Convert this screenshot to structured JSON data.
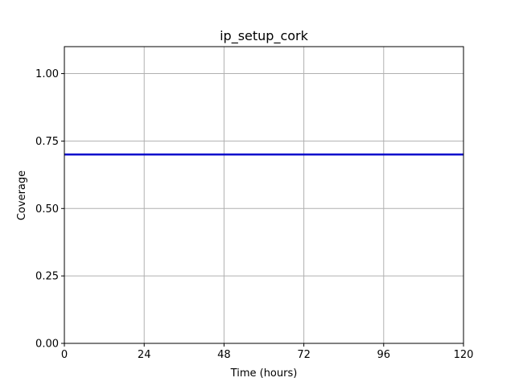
{
  "chart_data": {
    "type": "line",
    "title": "ip_setup_cork",
    "xlabel": "Time (hours)",
    "ylabel": "Coverage",
    "xlim": [
      0,
      120
    ],
    "ylim": [
      0,
      1.1
    ],
    "xticks": [
      0,
      24,
      48,
      72,
      96,
      120
    ],
    "xtick_labels": [
      "0",
      "24",
      "48",
      "72",
      "96",
      "120"
    ],
    "yticks": [
      0,
      0.25,
      0.5,
      0.75,
      1.0
    ],
    "ytick_labels": [
      "0.00",
      "0.25",
      "0.50",
      "0.75",
      "1.00"
    ],
    "grid": true,
    "series": [
      {
        "color": "#0000cc",
        "x": [
          0,
          120
        ],
        "y": [
          0.7,
          0.7
        ]
      }
    ]
  }
}
